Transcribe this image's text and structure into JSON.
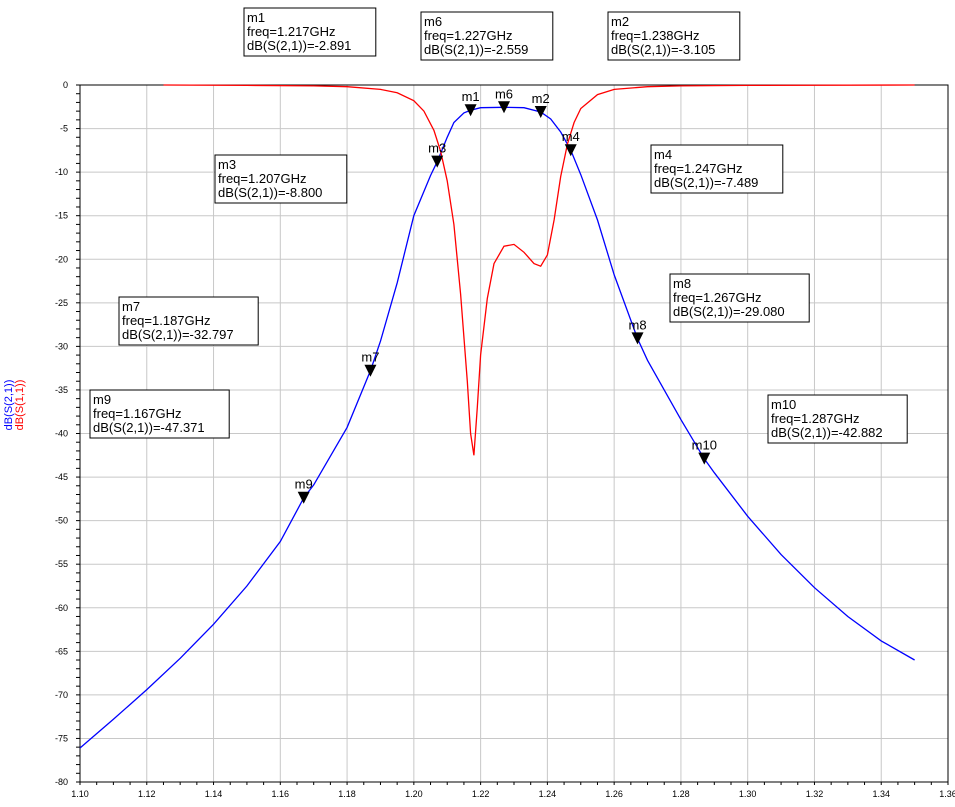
{
  "chart_data": {
    "type": "line",
    "title": "",
    "xlabel": "",
    "xlim": [
      1.1,
      1.36
    ],
    "ylim": [
      -80,
      0
    ],
    "x_ticks": [
      "1.10",
      "1.12",
      "1.14",
      "1.16",
      "1.18",
      "1.20",
      "1.22",
      "1.24",
      "1.26",
      "1.28",
      "1.30",
      "1.32",
      "1.34",
      "1.36"
    ],
    "y_ticks": [
      "0",
      "-5",
      "-10",
      "-15",
      "-20",
      "-25",
      "-30",
      "-35",
      "-40",
      "-45",
      "-50",
      "-55",
      "-60",
      "-65",
      "-70",
      "-75",
      "-80"
    ],
    "grid": true,
    "ylabels": [
      {
        "text": "dB(S(2,1))",
        "color": "#0000ff"
      },
      {
        "text": "dB(S(1,1))",
        "color": "#ff0000"
      }
    ],
    "series": [
      {
        "name": "dB(S(2,1))",
        "color": "#0000ff",
        "x": [
          1.1,
          1.11,
          1.12,
          1.13,
          1.14,
          1.15,
          1.16,
          1.167,
          1.17,
          1.18,
          1.187,
          1.19,
          1.195,
          1.2,
          1.205,
          1.207,
          1.21,
          1.212,
          1.215,
          1.217,
          1.22,
          1.227,
          1.233,
          1.238,
          1.241,
          1.244,
          1.247,
          1.25,
          1.255,
          1.26,
          1.267,
          1.27,
          1.28,
          1.287,
          1.29,
          1.3,
          1.31,
          1.32,
          1.33,
          1.34,
          1.35
        ],
        "y": [
          -76.1,
          -72.8,
          -69.4,
          -65.8,
          -61.9,
          -57.5,
          -52.4,
          -47.4,
          -45.9,
          -39.3,
          -32.8,
          -29.4,
          -22.7,
          -15.0,
          -10.4,
          -8.8,
          -6.0,
          -4.3,
          -3.2,
          -2.9,
          -2.6,
          -2.56,
          -2.6,
          -3.1,
          -3.9,
          -5.4,
          -7.5,
          -10.3,
          -15.5,
          -21.8,
          -29.1,
          -31.6,
          -38.4,
          -42.9,
          -44.5,
          -49.5,
          -53.9,
          -57.7,
          -61.0,
          -63.8,
          -66.0
        ]
      },
      {
        "name": "dB(S(1,1))",
        "color": "#ff0000",
        "x": [
          1.125,
          1.15,
          1.17,
          1.18,
          1.19,
          1.195,
          1.2,
          1.203,
          1.206,
          1.208,
          1.21,
          1.212,
          1.214,
          1.216,
          1.217,
          1.218,
          1.219,
          1.22,
          1.222,
          1.224,
          1.227,
          1.23,
          1.233,
          1.236,
          1.238,
          1.24,
          1.242,
          1.244,
          1.246,
          1.248,
          1.25,
          1.255,
          1.26,
          1.27,
          1.28,
          1.3,
          1.35
        ],
        "y": [
          0,
          -0.05,
          -0.1,
          -0.2,
          -0.5,
          -0.9,
          -1.8,
          -3.0,
          -5.2,
          -7.6,
          -11.0,
          -16.0,
          -24.0,
          -34.0,
          -40.0,
          -42.5,
          -37.0,
          -31.0,
          -24.5,
          -20.5,
          -18.5,
          -18.3,
          -19.2,
          -20.5,
          -20.8,
          -19.5,
          -15.5,
          -10.5,
          -6.8,
          -4.3,
          -2.7,
          -1.1,
          -0.5,
          -0.2,
          -0.1,
          -0.05,
          0
        ]
      }
    ],
    "markers": [
      {
        "id": "m1",
        "x": 1.217,
        "y": -2.891,
        "lines": [
          "m1",
          "freq=1.217GHz",
          "dB(S(2,1))=-2.891"
        ]
      },
      {
        "id": "m6",
        "x": 1.227,
        "y": -2.559,
        "lines": [
          "m6",
          "freq=1.227GHz",
          "dB(S(2,1))=-2.559"
        ]
      },
      {
        "id": "m2",
        "x": 1.238,
        "y": -3.105,
        "lines": [
          "m2",
          "freq=1.238GHz",
          "dB(S(2,1))=-3.105"
        ]
      },
      {
        "id": "m3",
        "x": 1.207,
        "y": -8.8,
        "lines": [
          "m3",
          "freq=1.207GHz",
          "dB(S(2,1))=-8.800"
        ]
      },
      {
        "id": "m4",
        "x": 1.247,
        "y": -7.489,
        "lines": [
          "m4",
          "freq=1.247GHz",
          "dB(S(2,1))=-7.489"
        ]
      },
      {
        "id": "m7",
        "x": 1.187,
        "y": -32.797,
        "lines": [
          "m7",
          "freq=1.187GHz",
          "dB(S(2,1))=-32.797"
        ]
      },
      {
        "id": "m8",
        "x": 1.267,
        "y": -29.08,
        "lines": [
          "m8",
          "freq=1.267GHz",
          "dB(S(2,1))=-29.080"
        ]
      },
      {
        "id": "m9",
        "x": 1.167,
        "y": -47.371,
        "lines": [
          "m9",
          "freq=1.167GHz",
          "dB(S(2,1))=-47.371"
        ]
      },
      {
        "id": "m10",
        "x": 1.287,
        "y": -42.882,
        "lines": [
          "m10",
          "freq=1.287GHz",
          "dB(S(2,1))=-42.882"
        ]
      }
    ]
  }
}
